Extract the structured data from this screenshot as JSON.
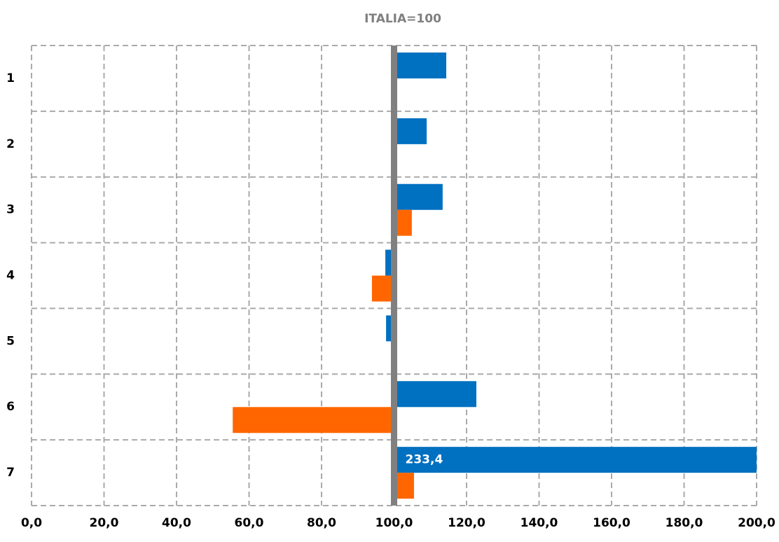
{
  "chart_data": {
    "type": "bar",
    "orientation": "horizontal",
    "title": "ITALIA=100",
    "categories": [
      "1",
      "2",
      "3",
      "4",
      "5",
      "6",
      "7"
    ],
    "base": 100,
    "series": [
      {
        "color": "#0070c0",
        "values": [
          114.4,
          109.0,
          113.4,
          97.6,
          97.8,
          122.7,
          233.4
        ],
        "value_labels": [
          null,
          null,
          null,
          null,
          null,
          null,
          "233,4"
        ]
      },
      {
        "color": "#ff6600",
        "values": [
          null,
          null,
          104.9,
          93.9,
          null,
          55.5,
          105.5
        ]
      }
    ],
    "xlim": [
      0,
      200
    ],
    "xticks": [
      {
        "value": 0,
        "label": "0,0"
      },
      {
        "value": 20,
        "label": "20,0"
      },
      {
        "value": 40,
        "label": "40,0"
      },
      {
        "value": 60,
        "label": "60,0"
      },
      {
        "value": 80,
        "label": "80,0"
      },
      {
        "value": 100,
        "label": "100,0"
      },
      {
        "value": 120,
        "label": "120,0"
      },
      {
        "value": 140,
        "label": "140,0"
      },
      {
        "value": 160,
        "label": "160,0"
      },
      {
        "value": 180,
        "label": "180,0"
      },
      {
        "value": 200,
        "label": "200,0"
      }
    ],
    "grid": true
  }
}
